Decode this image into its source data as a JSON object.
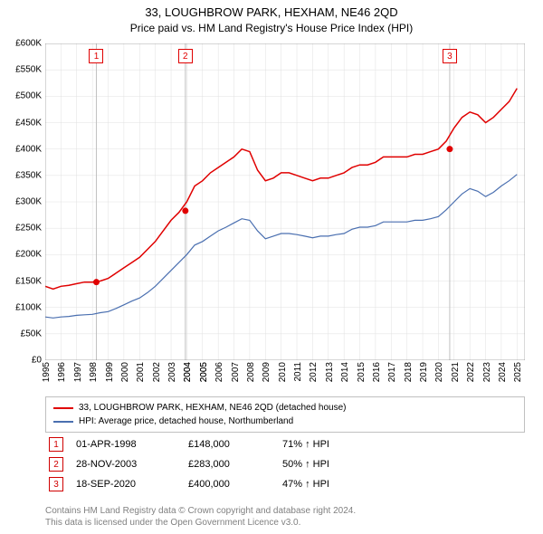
{
  "title": "33, LOUGHBROW PARK, HEXHAM, NE46 2QD",
  "subtitle": "Price paid vs. HM Land Registry's House Price Index (HPI)",
  "chart": {
    "type": "line",
    "plot_bg": "#ffffff",
    "xlim": [
      1995,
      2025.5
    ],
    "ylim": [
      0,
      600000
    ],
    "ytick_step": 50000,
    "yticks": [
      "£0",
      "£50K",
      "£100K",
      "£150K",
      "£200K",
      "£250K",
      "£300K",
      "£350K",
      "£400K",
      "£450K",
      "£500K",
      "£550K",
      "£600K"
    ],
    "xticks": [
      1995,
      1996,
      1997,
      1998,
      1999,
      2000,
      2001,
      2002,
      2003,
      2004,
      2005,
      2004,
      2005,
      2006,
      2007,
      2008,
      2009,
      2010,
      2011,
      2012,
      2013,
      2014,
      2015,
      2016,
      2017,
      2018,
      2019,
      2020,
      2021,
      2022,
      2023,
      2024,
      2025
    ],
    "xtick_labels": [
      "1995",
      "1996",
      "1997",
      "1998",
      "1999",
      "2000",
      "2001",
      "2002",
      "2003",
      "2004",
      "2005",
      "2004",
      "2005",
      "2006",
      "2007",
      "2008",
      "2009",
      "2010",
      "2011",
      "2012",
      "2013",
      "2014",
      "2015",
      "2016",
      "2017",
      "2018",
      "2019",
      "2020",
      "2021",
      "2022",
      "2023",
      "2024",
      "2025"
    ],
    "grid_color": "#e0e0e0",
    "grid_color_major": "#c8c8c8",
    "axis_color": "#808080",
    "series": [
      {
        "name": "33, LOUGHBROW PARK, HEXHAM, NE46 2QD (detached house)",
        "color": "#e00000",
        "width": 1.5,
        "x": [
          1995,
          1995.5,
          1996,
          1996.5,
          1997,
          1997.5,
          1998,
          1998.5,
          1999,
          1999.5,
          2000,
          2000.5,
          2001,
          2001.5,
          2002,
          2002.5,
          2003,
          2003.5,
          2004,
          2004.5,
          2005,
          2005.5,
          2006,
          2006.5,
          2007,
          2007.5,
          2008,
          2008.5,
          2009,
          2009.5,
          2010,
          2010.5,
          2011,
          2011.5,
          2012,
          2012.5,
          2013,
          2013.5,
          2014,
          2014.5,
          2015,
          2015.5,
          2016,
          2016.5,
          2017,
          2017.5,
          2018,
          2018.5,
          2019,
          2019.5,
          2020,
          2020.5,
          2021,
          2021.5,
          2022,
          2022.5,
          2023,
          2023.5,
          2024,
          2024.5,
          2025
        ],
        "y": [
          140000,
          135000,
          140000,
          142000,
          145000,
          148000,
          148000,
          150000,
          155000,
          165000,
          175000,
          185000,
          195000,
          210000,
          225000,
          245000,
          265000,
          280000,
          300000,
          330000,
          340000,
          355000,
          365000,
          375000,
          385000,
          400000,
          395000,
          360000,
          340000,
          345000,
          355000,
          355000,
          350000,
          345000,
          340000,
          345000,
          345000,
          350000,
          355000,
          365000,
          370000,
          370000,
          375000,
          385000,
          385000,
          385000,
          385000,
          390000,
          390000,
          395000,
          400000,
          415000,
          440000,
          460000,
          470000,
          465000,
          450000,
          460000,
          475000,
          490000,
          515000
        ]
      },
      {
        "name": "HPI: Average price, detached house, Northumberland",
        "color": "#4a6fb0",
        "width": 1.2,
        "x": [
          1995,
          1995.5,
          1996,
          1996.5,
          1997,
          1997.5,
          1998,
          1998.5,
          1999,
          1999.5,
          2000,
          2000.5,
          2001,
          2001.5,
          2002,
          2002.5,
          2003,
          2003.5,
          2004,
          2004.5,
          2005,
          2005.5,
          2006,
          2006.5,
          2007,
          2007.5,
          2008,
          2008.5,
          2009,
          2009.5,
          2010,
          2010.5,
          2011,
          2011.5,
          2012,
          2012.5,
          2013,
          2013.5,
          2014,
          2014.5,
          2015,
          2015.5,
          2016,
          2016.5,
          2017,
          2017.5,
          2018,
          2018.5,
          2019,
          2019.5,
          2020,
          2020.5,
          2021,
          2021.5,
          2022,
          2022.5,
          2023,
          2023.5,
          2024,
          2024.5,
          2025
        ],
        "y": [
          82000,
          80000,
          82000,
          83000,
          85000,
          86000,
          87000,
          90000,
          92000,
          98000,
          105000,
          112000,
          118000,
          128000,
          140000,
          155000,
          170000,
          185000,
          200000,
          218000,
          225000,
          235000,
          245000,
          252000,
          260000,
          268000,
          265000,
          245000,
          230000,
          235000,
          240000,
          240000,
          238000,
          235000,
          232000,
          235000,
          235000,
          238000,
          240000,
          248000,
          252000,
          252000,
          255000,
          262000,
          262000,
          262000,
          262000,
          265000,
          265000,
          268000,
          272000,
          285000,
          300000,
          315000,
          325000,
          320000,
          310000,
          318000,
          330000,
          340000,
          352000
        ]
      }
    ],
    "markers": [
      {
        "n": "1",
        "year": 1998.25,
        "color_border": "#e00000",
        "color_text": "#e00000",
        "vline_color": "#c0c0c0"
      },
      {
        "n": "2",
        "year": 2003.91,
        "color_border": "#e00000",
        "color_text": "#e00000",
        "vline_color": "#c0c0c0"
      },
      {
        "n": "3",
        "year": 2020.72,
        "color_border": "#e00000",
        "color_text": "#e00000",
        "vline_color": "#c0c0c0"
      }
    ],
    "sale_points": [
      {
        "year": 1998.25,
        "price": 148000,
        "color": "#e00000"
      },
      {
        "year": 2003.91,
        "price": 283000,
        "color": "#e00000"
      },
      {
        "year": 2020.72,
        "price": 400000,
        "color": "#e00000"
      }
    ]
  },
  "legend": {
    "items": [
      {
        "color": "#e00000",
        "label": "33, LOUGHBROW PARK, HEXHAM, NE46 2QD (detached house)"
      },
      {
        "color": "#4a6fb0",
        "label": "HPI: Average price, detached house, Northumberland"
      }
    ]
  },
  "annotations": [
    {
      "n": "1",
      "date": "01-APR-1998",
      "price": "£148,000",
      "pct": "71% ↑ HPI"
    },
    {
      "n": "2",
      "date": "28-NOV-2003",
      "price": "£283,000",
      "pct": "50% ↑ HPI"
    },
    {
      "n": "3",
      "date": "18-SEP-2020",
      "price": "£400,000",
      "pct": "47% ↑ HPI"
    }
  ],
  "attribution": {
    "line1": "Contains HM Land Registry data © Crown copyright and database right 2024.",
    "line2": "This data is licensed under the Open Government Licence v3.0."
  }
}
